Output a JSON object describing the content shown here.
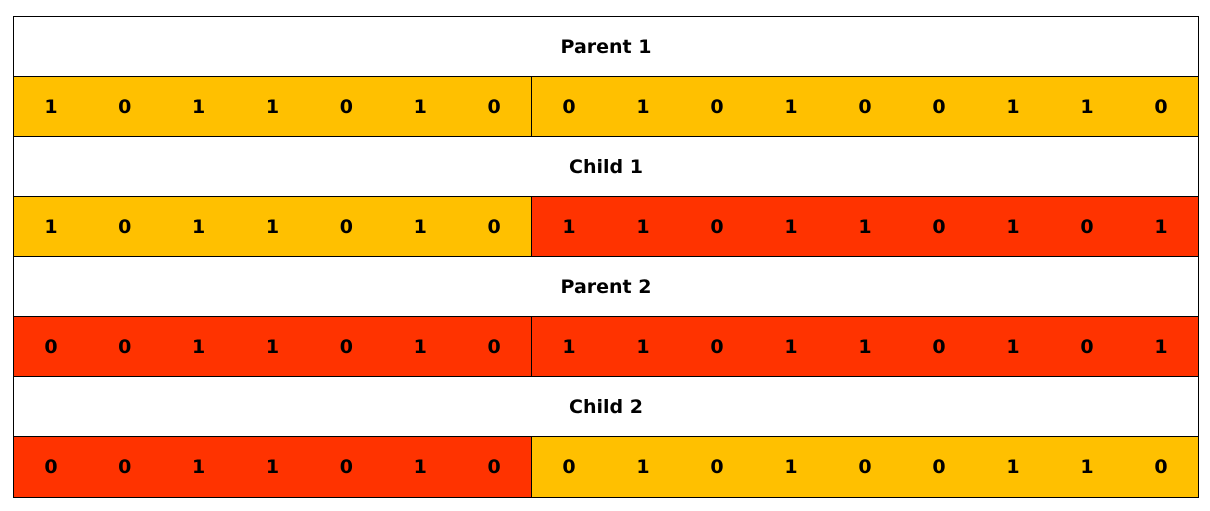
{
  "colors": {
    "segment_yellow": "#FFC000",
    "segment_red": "#FF3300"
  },
  "rows": [
    {
      "label": "Parent 1",
      "segments": [
        {
          "color": "segment_yellow",
          "bits": [
            "1",
            "0",
            "1",
            "1",
            "0",
            "1",
            "0"
          ]
        },
        {
          "color": "segment_yellow",
          "bits": [
            "0",
            "1",
            "0",
            "1",
            "0",
            "0",
            "1",
            "1",
            "0"
          ]
        }
      ]
    },
    {
      "label": "Child 1",
      "segments": [
        {
          "color": "segment_yellow",
          "bits": [
            "1",
            "0",
            "1",
            "1",
            "0",
            "1",
            "0"
          ]
        },
        {
          "color": "segment_red",
          "bits": [
            "1",
            "1",
            "0",
            "1",
            "1",
            "0",
            "1",
            "0",
            "1"
          ]
        }
      ]
    },
    {
      "label": "Parent 2",
      "segments": [
        {
          "color": "segment_red",
          "bits": [
            "0",
            "0",
            "1",
            "1",
            "0",
            "1",
            "0"
          ]
        },
        {
          "color": "segment_red",
          "bits": [
            "1",
            "1",
            "0",
            "1",
            "1",
            "0",
            "1",
            "0",
            "1"
          ]
        }
      ]
    },
    {
      "label": "Child 2",
      "segments": [
        {
          "color": "segment_red",
          "bits": [
            "0",
            "0",
            "1",
            "1",
            "0",
            "1",
            "0"
          ]
        },
        {
          "color": "segment_yellow",
          "bits": [
            "0",
            "1",
            "0",
            "1",
            "0",
            "0",
            "1",
            "1",
            "0"
          ]
        }
      ]
    }
  ]
}
